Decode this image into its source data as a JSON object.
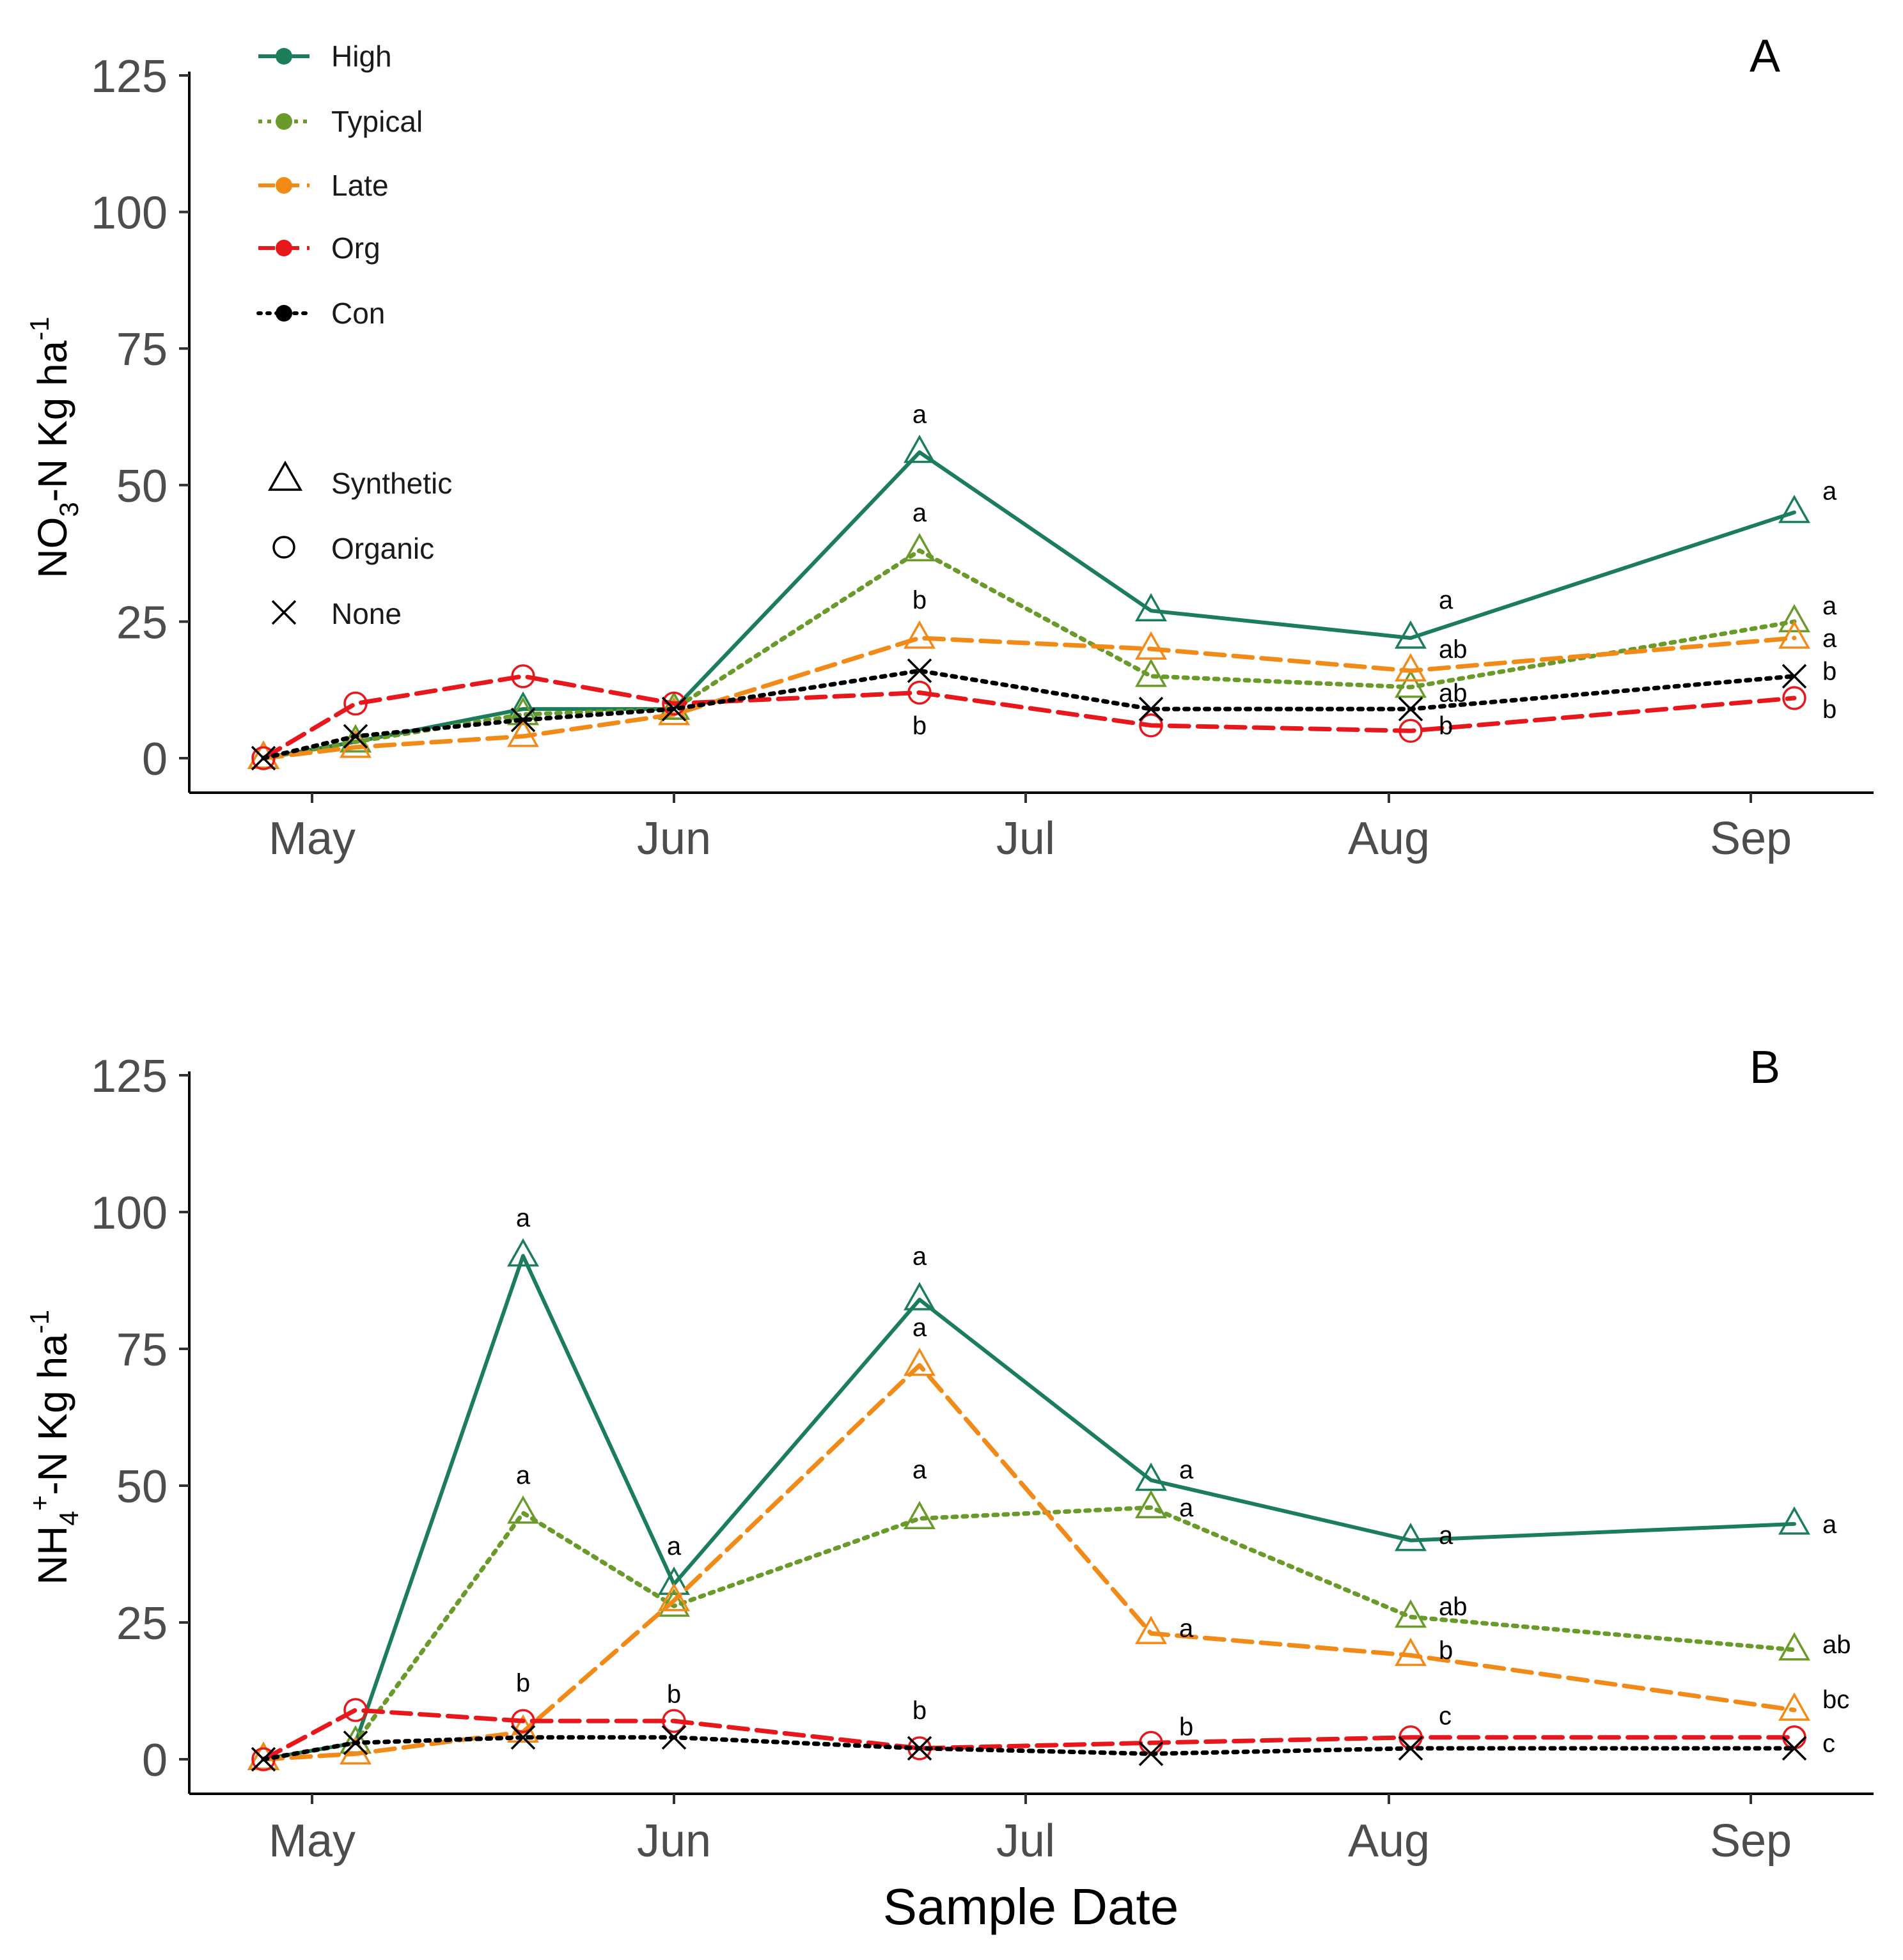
{
  "chart_data": [
    {
      "type": "line",
      "panel": "A",
      "ylabel": "NO3–N Kg ha-1",
      "ylabel_parts": {
        "main": "NO",
        "sub": "3",
        "mid": "-N  Kg ha",
        "sup": "-1"
      },
      "xlabel": "",
      "ylim": [
        0,
        125
      ],
      "yticks": [
        0,
        25,
        50,
        75,
        100,
        125
      ],
      "x_tick_labels": [
        "May",
        "Jun",
        "Jul",
        "Aug",
        "Sep"
      ],
      "legend": {
        "treatment_entries": [
          {
            "label": "High",
            "color": "#1b7d5a"
          },
          {
            "label": "Typical",
            "color": "#6a9a29"
          },
          {
            "label": "Late",
            "color": "#f28a18"
          },
          {
            "label": "Org",
            "color": "#e8171c"
          },
          {
            "label": "Con",
            "color": "#000000"
          }
        ],
        "shape_entries": [
          {
            "label": "Synthetic",
            "shape": "triangle"
          },
          {
            "label": "Organic",
            "shape": "circle"
          },
          {
            "label": "None",
            "shape": "cross"
          }
        ]
      },
      "series": [
        {
          "name": "High",
          "color": "#1b7d5a",
          "style": "solid",
          "shape": "triangle",
          "values": [
            0,
            3,
            9,
            9,
            56,
            27,
            22,
            45
          ]
        },
        {
          "name": "Typical",
          "color": "#6a9a29",
          "style": "dotted",
          "shape": "triangle",
          "values": [
            0,
            3,
            8,
            9,
            38,
            15,
            13,
            25
          ]
        },
        {
          "name": "Late",
          "color": "#f28a18",
          "style": "dashed",
          "shape": "triangle",
          "values": [
            0,
            2,
            4,
            8,
            22,
            20,
            16,
            22
          ]
        },
        {
          "name": "Org",
          "color": "#e8171c",
          "style": "dashed",
          "shape": "circle",
          "values": [
            0,
            10,
            15,
            10,
            12,
            6,
            5,
            11
          ]
        },
        {
          "name": "Con",
          "color": "#000000",
          "style": "dotted",
          "shape": "cross",
          "values": [
            0,
            4,
            7,
            9,
            16,
            9,
            9,
            15
          ]
        }
      ],
      "annotations": [
        {
          "text": "a",
          "at": 4,
          "value": 63
        },
        {
          "text": "a",
          "at": 4,
          "value": 45
        },
        {
          "text": "b",
          "at": 4,
          "value": 29
        },
        {
          "text": "b",
          "at": 4,
          "value": 6
        },
        {
          "text": "a",
          "at": 6,
          "value": 29,
          "side": "right"
        },
        {
          "text": "ab",
          "at": 6,
          "value": 20,
          "side": "right"
        },
        {
          "text": "ab",
          "at": 6,
          "value": 12,
          "side": "right"
        },
        {
          "text": "b",
          "at": 6,
          "value": 6,
          "side": "right"
        },
        {
          "text": "a",
          "at": 7,
          "value": 49,
          "side": "right"
        },
        {
          "text": "a",
          "at": 7,
          "value": 28,
          "side": "right"
        },
        {
          "text": "a",
          "at": 7,
          "value": 22,
          "side": "right"
        },
        {
          "text": "b",
          "at": 7,
          "value": 16,
          "side": "right"
        },
        {
          "text": "b",
          "at": 7,
          "value": 9,
          "side": "right"
        }
      ]
    },
    {
      "type": "line",
      "panel": "B",
      "ylabel": "NH4+–N Kg ha-1",
      "ylabel_parts": {
        "main": "NH",
        "sub": "4",
        "sup1": "+",
        "mid": "-N Kg ha",
        "sup": "-1"
      },
      "xlabel": "Sample Date",
      "ylim": [
        0,
        125
      ],
      "yticks": [
        0,
        25,
        50,
        75,
        100,
        125
      ],
      "x_tick_labels": [
        "May",
        "Jun",
        "Jul",
        "Aug",
        "Sep"
      ],
      "series": [
        {
          "name": "High",
          "color": "#1b7d5a",
          "style": "solid",
          "shape": "triangle",
          "values": [
            0,
            3,
            92,
            32,
            84,
            51,
            40,
            43
          ]
        },
        {
          "name": "Typical",
          "color": "#6a9a29",
          "style": "dotted",
          "shape": "triangle",
          "values": [
            0,
            3,
            45,
            28,
            44,
            46,
            26,
            20
          ]
        },
        {
          "name": "Late",
          "color": "#f28a18",
          "style": "dashed",
          "shape": "triangle",
          "values": [
            0,
            1,
            5,
            29,
            72,
            23,
            19,
            9
          ]
        },
        {
          "name": "Org",
          "color": "#e8171c",
          "style": "dashed",
          "shape": "circle",
          "values": [
            0,
            9,
            7,
            7,
            2,
            3,
            4,
            4
          ]
        },
        {
          "name": "Con",
          "color": "#000000",
          "style": "dotted",
          "shape": "cross",
          "values": [
            0,
            3,
            4,
            4,
            2,
            1,
            2,
            2
          ]
        }
      ],
      "annotations": [
        {
          "text": "a",
          "at": 2,
          "value": 99
        },
        {
          "text": "a",
          "at": 2,
          "value": 52
        },
        {
          "text": "b",
          "at": 2,
          "value": 14
        },
        {
          "text": "a",
          "at": 3,
          "value": 39
        },
        {
          "text": "b",
          "at": 3,
          "value": 12
        },
        {
          "text": "a",
          "at": 4,
          "value": 92
        },
        {
          "text": "a",
          "at": 4,
          "value": 79
        },
        {
          "text": "a",
          "at": 4,
          "value": 53
        },
        {
          "text": "b",
          "at": 4,
          "value": 9
        },
        {
          "text": "a",
          "at": 5,
          "value": 53,
          "side": "right"
        },
        {
          "text": "a",
          "at": 5,
          "value": 46,
          "side": "right"
        },
        {
          "text": "a",
          "at": 5,
          "value": 24,
          "side": "right"
        },
        {
          "text": "b",
          "at": 5,
          "value": 6,
          "side": "right"
        },
        {
          "text": "a",
          "at": 6,
          "value": 41,
          "side": "right"
        },
        {
          "text": "ab",
          "at": 6,
          "value": 28,
          "side": "right"
        },
        {
          "text": "b",
          "at": 6,
          "value": 20,
          "side": "right"
        },
        {
          "text": "c",
          "at": 6,
          "value": 8,
          "side": "right"
        },
        {
          "text": "a",
          "at": 7,
          "value": 43,
          "side": "right"
        },
        {
          "text": "ab",
          "at": 7,
          "value": 21,
          "side": "right"
        },
        {
          "text": "bc",
          "at": 7,
          "value": 11,
          "side": "right"
        },
        {
          "text": "c",
          "at": 7,
          "value": 3,
          "side": "right"
        }
      ]
    }
  ]
}
